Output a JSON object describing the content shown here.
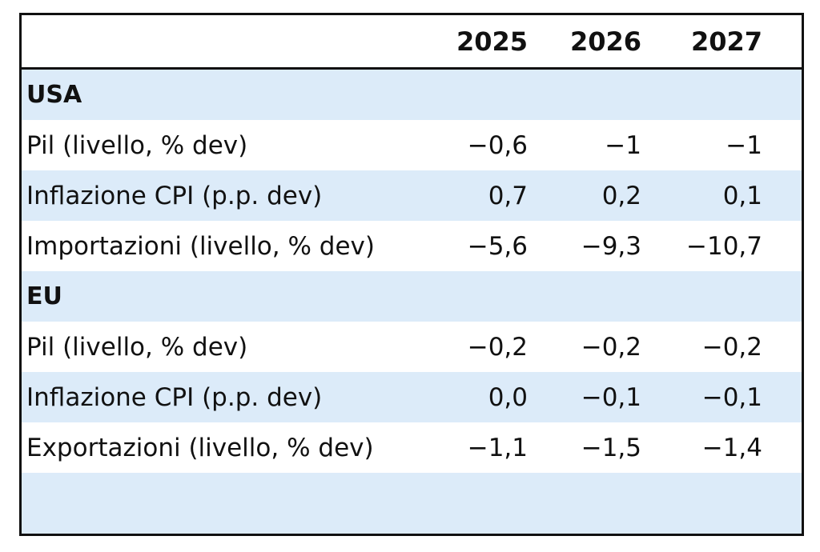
{
  "chart_data": {
    "type": "table",
    "columns": [
      "2025",
      "2026",
      "2027"
    ],
    "sections": [
      {
        "name": "USA",
        "rows": [
          {
            "label": "Pil (livello, % dev)",
            "values": [
              "−0,6",
              "−1",
              "−1"
            ]
          },
          {
            "label": "Inflazione CPI (p.p. dev)",
            "values": [
              "0,7",
              "0,2",
              "0,1"
            ]
          },
          {
            "label": "Importazioni (livello, % dev)",
            "values": [
              "−5,6",
              "−9,3",
              "−10,7"
            ]
          }
        ]
      },
      {
        "name": "EU",
        "rows": [
          {
            "label": "Pil (livello, % dev)",
            "values": [
              "−0,2",
              "−0,2",
              "−0,2"
            ]
          },
          {
            "label": "Inflazione CPI (p.p. dev)",
            "values": [
              "0,0",
              "−0,1",
              "−0,1"
            ]
          },
          {
            "label": "Exportazioni (livello, % dev)",
            "values": [
              "−1,1",
              "−1,5",
              "−1,4"
            ]
          }
        ]
      }
    ]
  },
  "colors": {
    "band": "#dcebf9",
    "border": "#111111",
    "text": "#111111",
    "background": "#ffffff"
  }
}
